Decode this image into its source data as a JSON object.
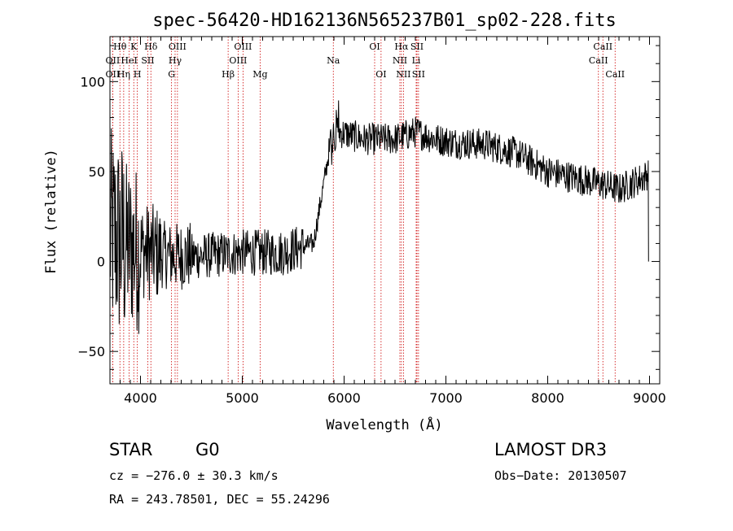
{
  "chart_data": {
    "type": "line",
    "title": "spec-56420-HD162136N565237B01_sp02-228.fits",
    "xlabel": "Wavelength (Å)",
    "ylabel": "Flux (relative)",
    "xlim": [
      3700,
      9100
    ],
    "ylim": [
      -68,
      125
    ],
    "xticks": [
      4000,
      5000,
      6000,
      7000,
      8000,
      9000
    ],
    "yticks": [
      -50,
      0,
      50,
      100
    ],
    "spectrum_envelope": {
      "x": [
        3700,
        3900,
        4100,
        4300,
        4600,
        5000,
        5400,
        5700,
        5850,
        5950,
        6200,
        6500,
        6700,
        6900,
        7100,
        7400,
        7700,
        8000,
        8300,
        8600,
        8700,
        8950,
        9000
      ],
      "y": [
        15,
        8,
        5,
        3,
        3,
        5,
        5,
        10,
        60,
        72,
        68,
        68,
        72,
        68,
        66,
        65,
        60,
        50,
        46,
        42,
        40,
        47,
        50
      ]
    },
    "spectral_lines": [
      {
        "label": "OII",
        "wavelength": 3727,
        "row": 2
      },
      {
        "label": "Hθ",
        "wavelength": 3798,
        "row": 0
      },
      {
        "label": "OII",
        "wavelength": 3727,
        "row": 1
      },
      {
        "label": "Hη",
        "wavelength": 3835,
        "row": 2
      },
      {
        "label": "HeI",
        "wavelength": 3889,
        "row": 1
      },
      {
        "label": "K",
        "wavelength": 3934,
        "row": 0
      },
      {
        "label": "SII",
        "wavelength": 4072,
        "row": 1
      },
      {
        "label": "H",
        "wavelength": 3969,
        "row": 2
      },
      {
        "label": "Hδ",
        "wavelength": 4102,
        "row": 0
      },
      {
        "label": "OIII",
        "wavelength": 4363,
        "row": 0
      },
      {
        "label": "Hγ",
        "wavelength": 4340,
        "row": 1
      },
      {
        "label": "G",
        "wavelength": 4305,
        "row": 2
      },
      {
        "label": "Hβ",
        "wavelength": 4861,
        "row": 2
      },
      {
        "label": "OIII",
        "wavelength": 5007,
        "row": 0
      },
      {
        "label": "OIII",
        "wavelength": 4959,
        "row": 1
      },
      {
        "label": "Mg",
        "wavelength": 5175,
        "row": 2
      },
      {
        "label": "Na",
        "wavelength": 5894,
        "row": 1
      },
      {
        "label": "OI",
        "wavelength": 6300,
        "row": 0
      },
      {
        "label": "OI",
        "wavelength": 6363,
        "row": 2
      },
      {
        "label": "Hα",
        "wavelength": 6563,
        "row": 0
      },
      {
        "label": "NII",
        "wavelength": 6548,
        "row": 1
      },
      {
        "label": "NII",
        "wavelength": 6583,
        "row": 2
      },
      {
        "label": "SII",
        "wavelength": 6716,
        "row": 0
      },
      {
        "label": "Li",
        "wavelength": 6708,
        "row": 1
      },
      {
        "label": "SII",
        "wavelength": 6731,
        "row": 2
      },
      {
        "label": "CaII",
        "wavelength": 8542,
        "row": 0
      },
      {
        "label": "CaII",
        "wavelength": 8498,
        "row": 1
      },
      {
        "label": "CaII",
        "wavelength": 8662,
        "row": 2
      }
    ]
  },
  "info": {
    "object_class": "STAR",
    "subclass": "G0",
    "survey": "LAMOST DR3",
    "cz": "cz = −276.0 ± 30.3 km/s",
    "obs_date": "Obs−Date: 20130507",
    "coords": "RA = 243.78501, DEC =  55.24296"
  },
  "colors": {
    "axes": "#000000",
    "spectrum": "#000000",
    "line_markers": "#cc0000",
    "background": "#ffffff"
  }
}
